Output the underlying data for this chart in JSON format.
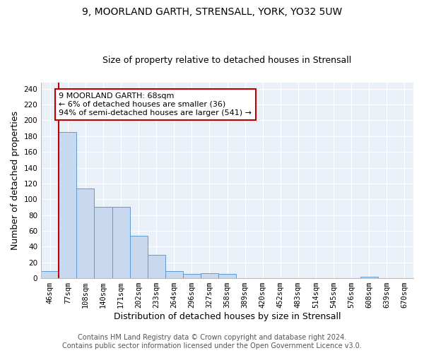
{
  "title1": "9, MOORLAND GARTH, STRENSALL, YORK, YO32 5UW",
  "title2": "Size of property relative to detached houses in Strensall",
  "xlabel": "Distribution of detached houses by size in Strensall",
  "ylabel": "Number of detached properties",
  "footnote": "Contains HM Land Registry data © Crown copyright and database right 2024.\nContains public sector information licensed under the Open Government Licence v3.0.",
  "bin_labels": [
    "46sqm",
    "77sqm",
    "108sqm",
    "140sqm",
    "171sqm",
    "202sqm",
    "233sqm",
    "264sqm",
    "296sqm",
    "327sqm",
    "358sqm",
    "389sqm",
    "420sqm",
    "452sqm",
    "483sqm",
    "514sqm",
    "545sqm",
    "576sqm",
    "608sqm",
    "639sqm",
    "670sqm"
  ],
  "bar_heights": [
    9,
    185,
    114,
    90,
    90,
    54,
    30,
    9,
    5,
    6,
    5,
    0,
    0,
    0,
    0,
    0,
    0,
    0,
    2,
    0,
    0
  ],
  "bar_color": "#c8d9ef",
  "bar_edge_color": "#5b9bd5",
  "vline_x_idx": 0,
  "vline_color": "#c00000",
  "annotation_text": "9 MOORLAND GARTH: 68sqm\n← 6% of detached houses are smaller (36)\n94% of semi-detached houses are larger (541) →",
  "annotation_box_color": "white",
  "annotation_box_edge_color": "#c00000",
  "ylim": [
    0,
    248
  ],
  "yticks": [
    0,
    20,
    40,
    60,
    80,
    100,
    120,
    140,
    160,
    180,
    200,
    220,
    240
  ],
  "bg_color": "#eaf0f8",
  "grid_color": "white",
  "title1_fontsize": 10,
  "title2_fontsize": 9,
  "xlabel_fontsize": 9,
  "ylabel_fontsize": 9,
  "tick_fontsize": 7.5,
  "footnote_fontsize": 7
}
